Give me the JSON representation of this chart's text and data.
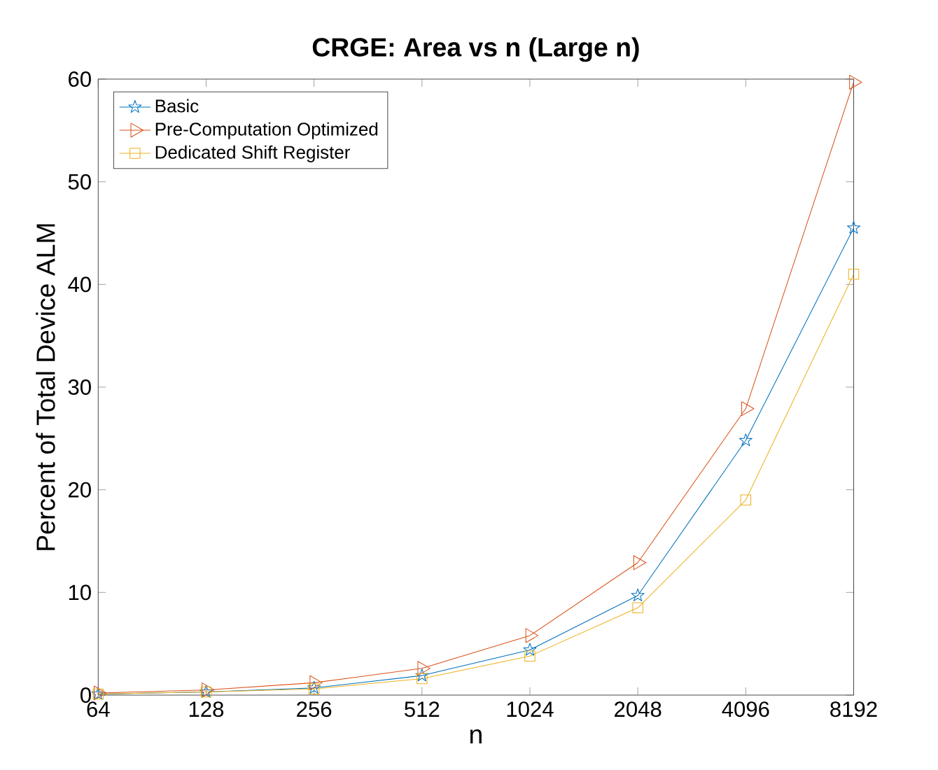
{
  "chart_data": {
    "type": "line",
    "title": "CRGE: Area vs n (Large n)",
    "xlabel": "n",
    "ylabel": "Percent of Total Device ALM",
    "categories": [
      "64",
      "128",
      "256",
      "512",
      "1024",
      "2048",
      "4096",
      "8192"
    ],
    "series": [
      {
        "name": "Basic",
        "color": "#0072bd",
        "marker": "star",
        "values": [
          0.1,
          0.3,
          0.7,
          1.9,
          4.4,
          9.7,
          24.8,
          45.5
        ]
      },
      {
        "name": "Pre-Computation Optimized",
        "color": "#d95319",
        "marker": "triangle",
        "values": [
          0.2,
          0.5,
          1.2,
          2.6,
          5.8,
          12.9,
          27.9,
          59.7
        ]
      },
      {
        "name": "Dedicated Shift Register",
        "color": "#edb120",
        "marker": "square",
        "values": [
          0.1,
          0.3,
          0.6,
          1.6,
          3.8,
          8.5,
          19.0,
          41.0
        ]
      }
    ],
    "ylim": [
      0,
      60
    ],
    "yticks": [
      0,
      10,
      20,
      30,
      40,
      50,
      60
    ],
    "legend": "top left",
    "grid": false,
    "line_style": "solid"
  }
}
